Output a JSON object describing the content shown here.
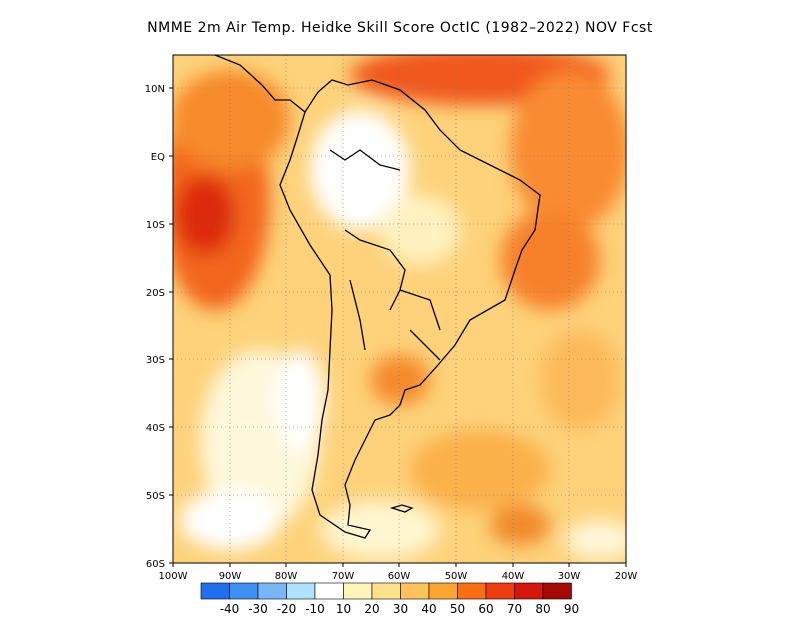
{
  "title": "NMME  2m Air Temp. Heidke Skill Score OctIC (1982–2022) NOV Fcst",
  "axes": {
    "lon_ticks": [
      "100W",
      "90W",
      "80W",
      "70W",
      "60W",
      "50W",
      "40W",
      "30W",
      "20W"
    ],
    "lat_ticks": [
      "10N",
      "EQ",
      "10S",
      "20S",
      "30S",
      "40S",
      "50S",
      "60S"
    ]
  },
  "map_extent": {
    "lon_min": -100,
    "lon_max": -20,
    "lat_min": -60,
    "lat_max": 15
  },
  "colorbar": {
    "labels": [
      "-40",
      "-30",
      "-20",
      "-10",
      "10",
      "20",
      "30",
      "40",
      "50",
      "60",
      "70",
      "80",
      "90"
    ],
    "colors": [
      "#1f6ff0",
      "#3d8ff5",
      "#79b6f7",
      "#aee3fb",
      "#ffffff",
      "#fef3b8",
      "#fde28a",
      "#fdc35a",
      "#fda52e",
      "#fb6e13",
      "#f03c0e",
      "#d5160d",
      "#a60806"
    ]
  },
  "gridlines": "dotted",
  "colors": {
    "land_outline": "#000000",
    "frame": "#000000"
  }
}
